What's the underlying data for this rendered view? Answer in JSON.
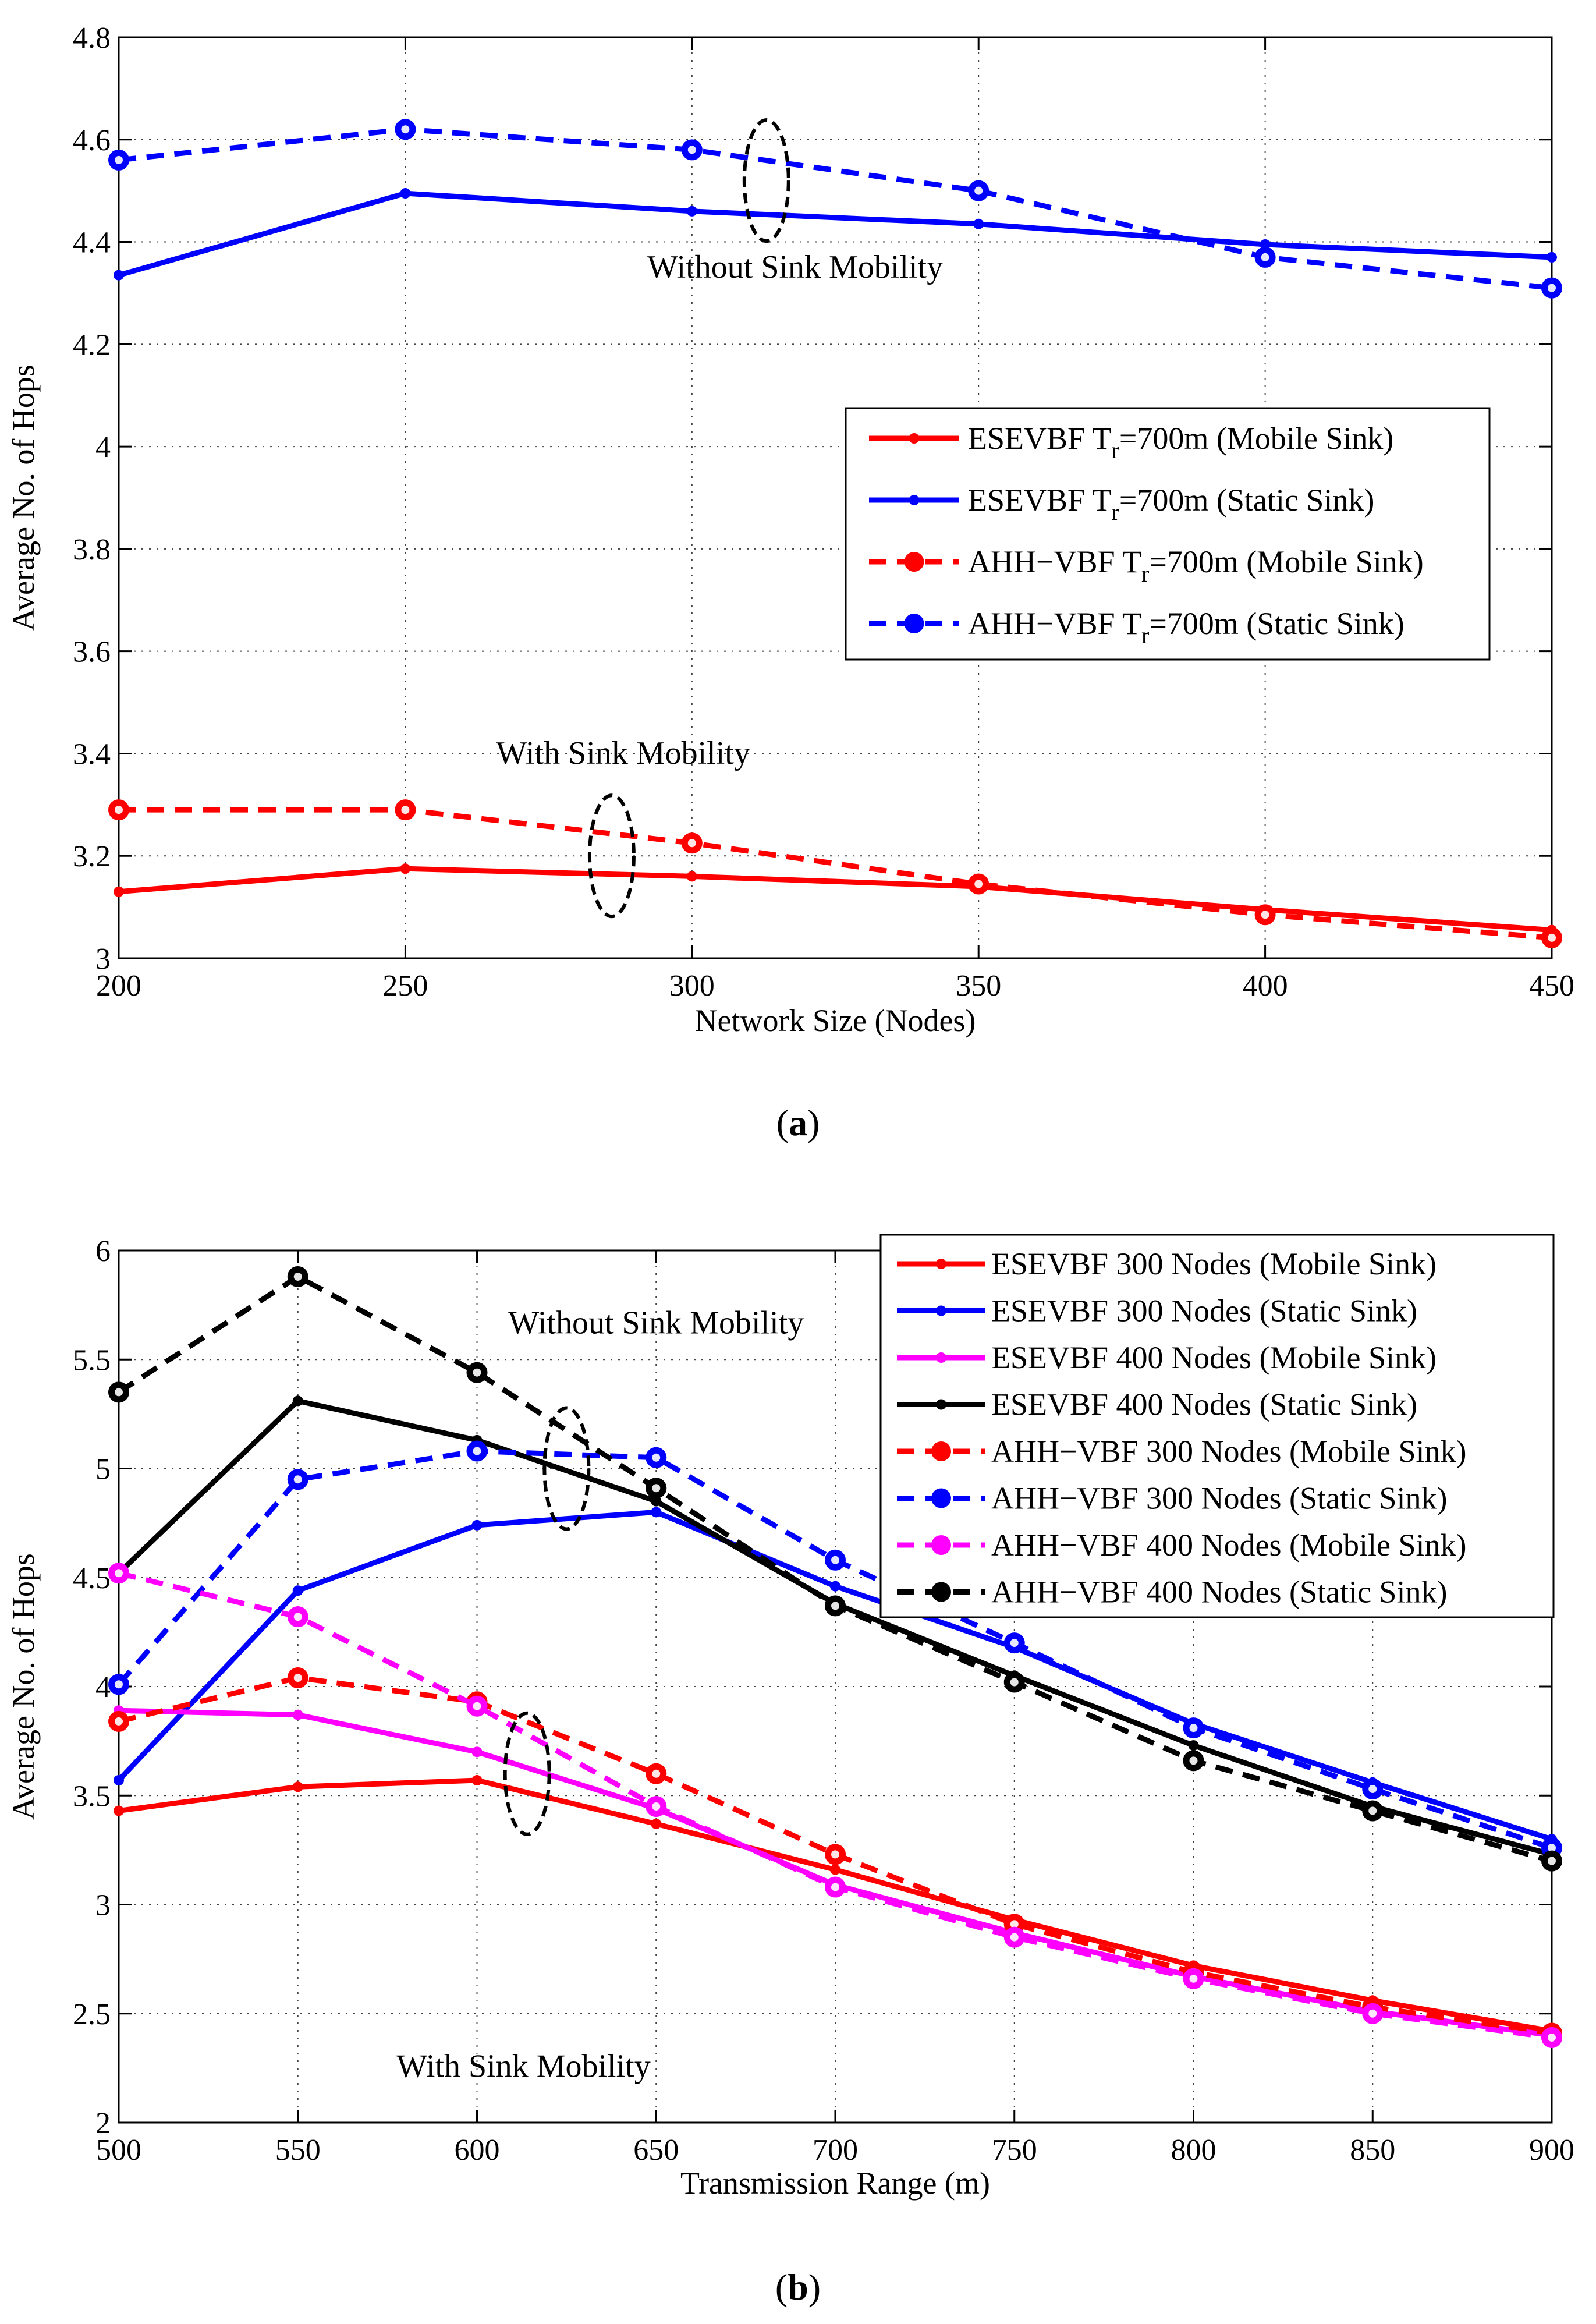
{
  "chart_data": [
    {
      "id": "a",
      "type": "line",
      "caption_open": "(",
      "caption_letter": "a",
      "caption_close": ")",
      "xlabel": "Network Size (Nodes)",
      "ylabel": "Average No. of Hops",
      "xlim": [
        200,
        450
      ],
      "ylim": [
        3,
        4.8
      ],
      "xticks": [
        200,
        250,
        300,
        350,
        400,
        450
      ],
      "xtick_labels": [
        "200",
        "250",
        "300",
        "350",
        "400",
        "450"
      ],
      "yticks": [
        3,
        3.2,
        3.4,
        3.6,
        3.8,
        4,
        4.2,
        4.4,
        4.6,
        4.8
      ],
      "ytick_labels": [
        "3",
        "3.2",
        "3.4",
        "3.6",
        "3.8",
        "4",
        "4.2",
        "4.4",
        "4.6",
        "4.8"
      ],
      "grid": true,
      "legend_position": "center-right",
      "x": [
        200,
        250,
        300,
        350,
        400,
        450
      ],
      "series": [
        {
          "key": "esevbf-mobile",
          "legend_main": "ESEVBF T",
          "legend_sub": "r",
          "legend_tail": "=700m (Mobile Sink)",
          "color": "#ff0000",
          "style": "solid",
          "marker": "dot",
          "values": [
            3.13,
            3.175,
            3.16,
            3.14,
            3.095,
            3.055
          ]
        },
        {
          "key": "esevbf-static",
          "legend_main": "ESEVBF T",
          "legend_sub": "r",
          "legend_tail": "=700m (Static Sink)",
          "color": "#0000ff",
          "style": "solid",
          "marker": "dot",
          "values": [
            4.335,
            4.495,
            4.46,
            4.435,
            4.395,
            4.37
          ]
        },
        {
          "key": "ahh-mobile",
          "legend_main": "AHH−VBF T",
          "legend_sub": "r",
          "legend_tail": "=700m (Mobile Sink)",
          "color": "#ff0000",
          "style": "dashed",
          "marker": "circle",
          "values": [
            3.29,
            3.29,
            3.225,
            3.145,
            3.085,
            3.04
          ]
        },
        {
          "key": "ahh-static",
          "legend_main": "AHH−VBF T",
          "legend_sub": "r",
          "legend_tail": "=700m (Static Sink)",
          "color": "#0000ff",
          "style": "dashed",
          "marker": "circle",
          "values": [
            4.56,
            4.62,
            4.58,
            4.5,
            4.37,
            4.31
          ]
        }
      ],
      "annotations": [
        {
          "key": "without",
          "text": "Without Sink Mobility",
          "ellipse_at": [
            313,
            4.52
          ],
          "text_at": [
            318,
            4.33
          ]
        },
        {
          "key": "with",
          "text": "With Sink Mobility",
          "ellipse_at": [
            286,
            3.2
          ],
          "text_at": [
            288,
            3.38
          ]
        }
      ]
    },
    {
      "id": "b",
      "type": "line",
      "caption_open": "(",
      "caption_letter": "b",
      "caption_close": ")",
      "xlabel": "Transmission Range (m)",
      "ylabel": "Average No. of Hops",
      "xlim": [
        500,
        900
      ],
      "ylim": [
        2,
        6
      ],
      "xticks": [
        500,
        550,
        600,
        650,
        700,
        750,
        800,
        850,
        900
      ],
      "xtick_labels": [
        "500",
        "550",
        "600",
        "650",
        "700",
        "750",
        "800",
        "850",
        "900"
      ],
      "yticks": [
        2,
        2.5,
        3,
        3.5,
        4,
        4.5,
        5,
        5.5,
        6
      ],
      "ytick_labels": [
        "2",
        "2.5",
        "3",
        "3.5",
        "4",
        "4.5",
        "5",
        "5.5",
        "6"
      ],
      "grid": true,
      "legend_position": "top-right",
      "x": [
        500,
        550,
        600,
        650,
        700,
        750,
        800,
        850,
        900
      ],
      "series": [
        {
          "key": "esevbf-300-mobile",
          "legend": "ESEVBF 300 Nodes (Mobile Sink)",
          "color": "#ff0000",
          "style": "solid",
          "marker": "dot",
          "values": [
            3.43,
            3.54,
            3.57,
            3.37,
            3.16,
            2.93,
            2.72,
            2.56,
            2.42
          ]
        },
        {
          "key": "esevbf-300-static",
          "legend": "ESEVBF 300 Nodes (Static Sink)",
          "color": "#0000ff",
          "style": "solid",
          "marker": "dot",
          "values": [
            3.57,
            4.44,
            4.74,
            4.8,
            4.46,
            4.18,
            3.83,
            3.56,
            3.3
          ]
        },
        {
          "key": "esevbf-400-mobile",
          "legend": "ESEVBF 400 Nodes (Mobile Sink)",
          "color": "#ff00ff",
          "style": "solid",
          "marker": "dot",
          "values": [
            3.89,
            3.87,
            3.7,
            3.44,
            3.09,
            2.87,
            2.67,
            2.51,
            2.4
          ]
        },
        {
          "key": "esevbf-400-static",
          "legend": "ESEVBF 400 Nodes (Static Sink)",
          "color": "#000000",
          "style": "solid",
          "marker": "dot",
          "values": [
            4.52,
            5.31,
            5.13,
            4.85,
            4.38,
            4.05,
            3.73,
            3.45,
            3.23
          ]
        },
        {
          "key": "ahh-300-mobile",
          "legend": "AHH−VBF 300 Nodes (Mobile Sink)",
          "color": "#ff0000",
          "style": "dashed",
          "marker": "circle",
          "values": [
            3.84,
            4.04,
            3.93,
            3.6,
            3.23,
            2.91,
            2.69,
            2.53,
            2.41
          ]
        },
        {
          "key": "ahh-300-static",
          "legend": "AHH−VBF 300 Nodes (Static Sink)",
          "color": "#0000ff",
          "style": "dashed",
          "marker": "circle",
          "values": [
            4.01,
            4.95,
            5.08,
            5.05,
            4.58,
            4.2,
            3.81,
            3.53,
            3.26
          ]
        },
        {
          "key": "ahh-400-mobile",
          "legend": "AHH−VBF 400 Nodes (Mobile Sink)",
          "color": "#ff00ff",
          "style": "dashed",
          "marker": "circle",
          "values": [
            4.52,
            4.32,
            3.91,
            3.45,
            3.08,
            2.85,
            2.66,
            2.5,
            2.39
          ]
        },
        {
          "key": "ahh-400-static",
          "legend": "AHH−VBF 400 Nodes (Static Sink)",
          "color": "#000000",
          "style": "dashed",
          "marker": "circle",
          "values": [
            5.35,
            5.88,
            5.44,
            4.91,
            4.37,
            4.02,
            3.66,
            3.43,
            3.2
          ]
        }
      ],
      "annotations": [
        {
          "key": "without",
          "text": "Without Sink Mobility",
          "ellipse_at": [
            625,
            5.0
          ],
          "text_at": [
            650,
            5.62
          ]
        },
        {
          "key": "with",
          "text": "With Sink Mobility",
          "ellipse_at": [
            614,
            3.6
          ],
          "text_at": [
            613,
            2.21
          ]
        }
      ]
    }
  ]
}
